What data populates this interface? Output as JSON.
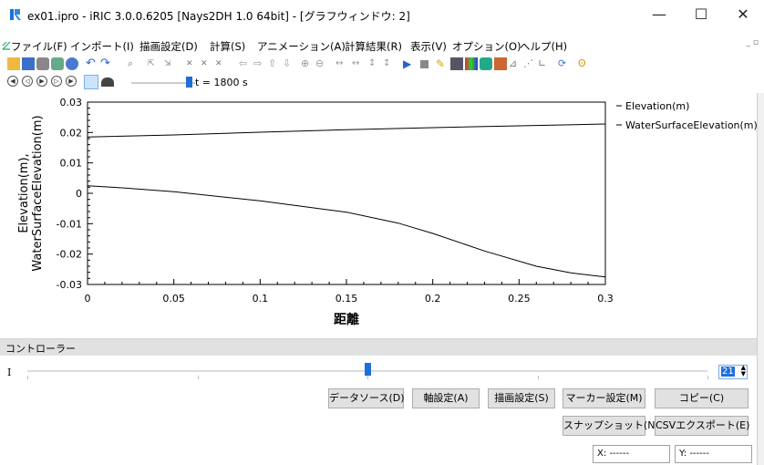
{
  "window": {
    "title": "ex01.ipro - iRIC 3.0.0.6205 [Nays2DH 1.0 64bit] - [グラフウィンドウ: 2]",
    "minimize": "—",
    "maximize": "☐",
    "close": "✕"
  },
  "menu": [
    "ファイル(F)",
    "インポート(I)",
    "描画設定(D)",
    "計算(S)",
    "アニメーション(A)",
    "計算結果(R)",
    "表示(V)",
    "オプション(O)",
    "ヘルプ(H)"
  ],
  "time_label": "t = 1800 s",
  "chart_data": {
    "type": "line",
    "xlabel": "距離",
    "ylabel": "Elevation(m),\nWaterSurfaceElevation(m)",
    "xlim": [
      0,
      0.3
    ],
    "ylim": [
      -0.03,
      0.03
    ],
    "xticks": [
      "0",
      "0.05",
      "0.1",
      "0.15",
      "0.2",
      "0.25",
      "0.3"
    ],
    "yticks": [
      "0.03",
      "0.02",
      "0.01",
      "0",
      "-0.01",
      "-0.02",
      "-0.03"
    ],
    "series": [
      {
        "name": "Elevation(m)",
        "x": [
          0,
          0.02,
          0.05,
          0.1,
          0.15,
          0.18,
          0.2,
          0.23,
          0.26,
          0.28,
          0.3
        ],
        "y": [
          0.0025,
          0.0018,
          0.0005,
          -0.0025,
          -0.0062,
          -0.0098,
          -0.0132,
          -0.019,
          -0.024,
          -0.0262,
          -0.0275
        ]
      },
      {
        "name": "WaterSurfaceElevation(m)",
        "x": [
          0,
          0.05,
          0.1,
          0.15,
          0.2,
          0.25,
          0.3
        ],
        "y": [
          0.0185,
          0.0192,
          0.0201,
          0.0209,
          0.0216,
          0.0222,
          0.0228
        ]
      }
    ],
    "legend_position": "right"
  },
  "controller": {
    "title": "コントローラー",
    "slider_label": "I",
    "spin_value": "21",
    "slider_fraction": 0.5
  },
  "buttons": {
    "data_source": "データソース(D)",
    "axis": "軸設定(A)",
    "draw": "描画設定(S)",
    "marker": "マーカー設定(M)",
    "copy": "コピー(C)",
    "snapshot": "スナップショット(N)",
    "csv_export": "CSVエクスポート(E)"
  },
  "status": {
    "x": "X: ------",
    "y": "Y: ------"
  },
  "colors": {
    "blue_accent": "#1e6fd9",
    "chart_line": "#000000"
  }
}
